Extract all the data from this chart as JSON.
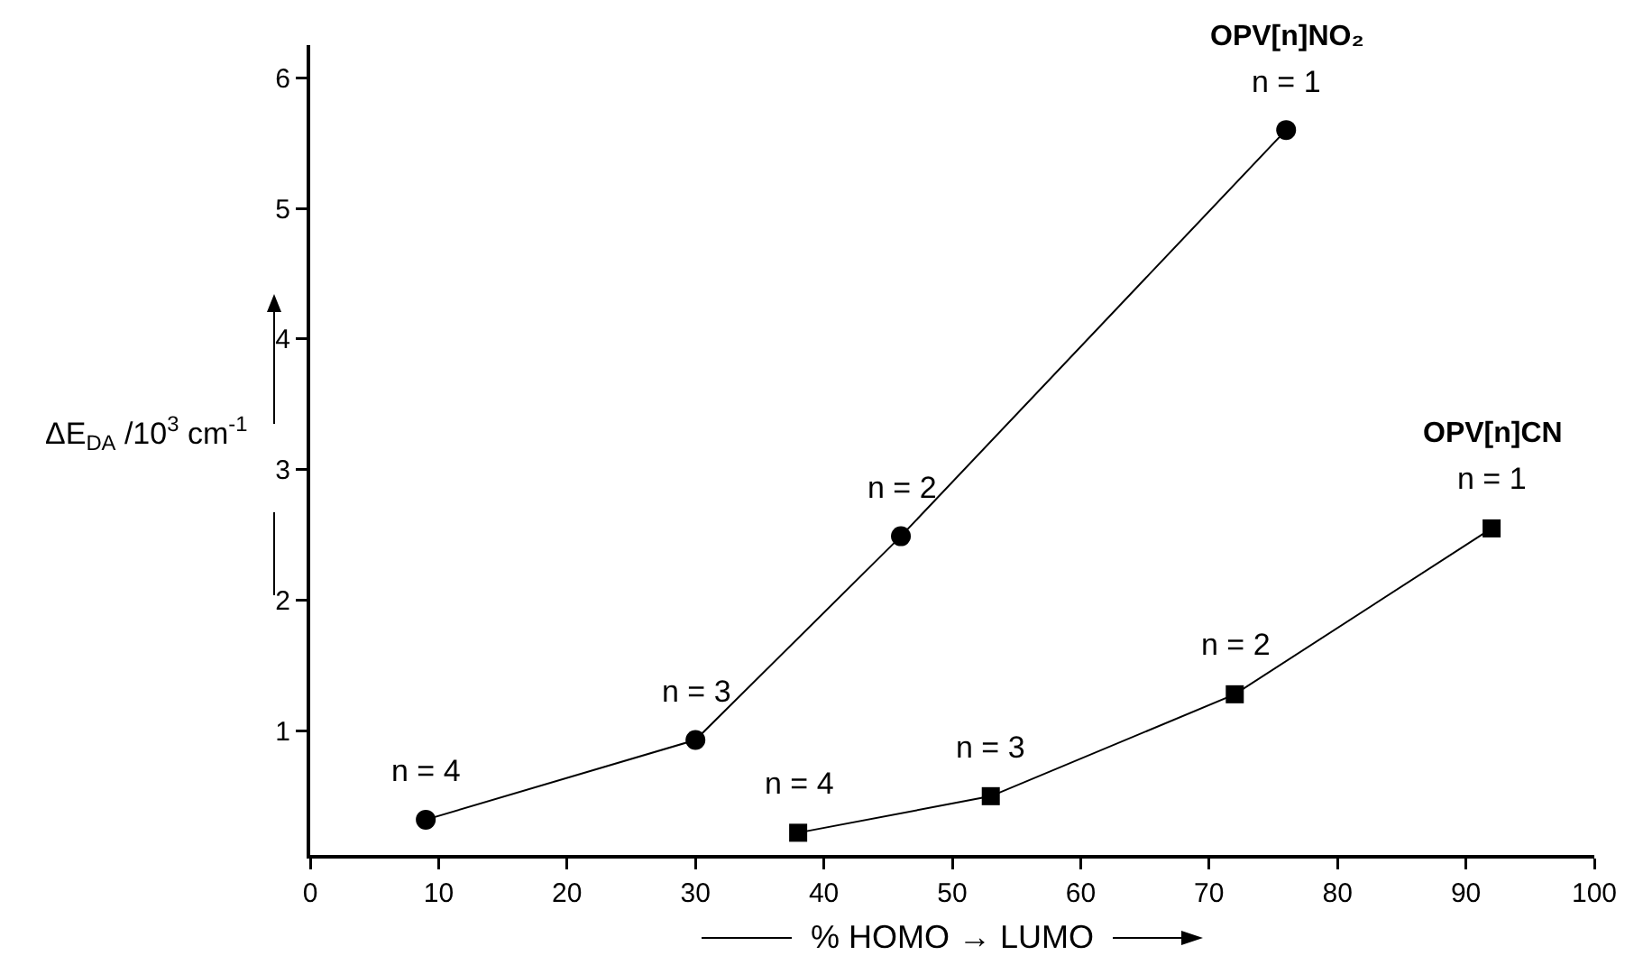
{
  "chart_data": {
    "type": "line",
    "xlabel": "% HOMO → LUMO",
    "ylabel": "ΔE$_{DA}$ /10$^{3}$ cm$^{-1}$",
    "xlim": [
      0,
      100
    ],
    "xticks": [
      0,
      10,
      20,
      30,
      40,
      50,
      60,
      70,
      80,
      90,
      100
    ],
    "ylim": [
      0.05,
      6.25
    ],
    "yticks": [
      1,
      2,
      3,
      4,
      5,
      6
    ],
    "grid": false,
    "legend": false,
    "line_style": "solid",
    "series": [
      {
        "name": "OPV[n]NO₂",
        "color": "#000000",
        "marker": "circle",
        "x": [
          9,
          30,
          46,
          76
        ],
        "values": [
          0.32,
          0.93,
          2.49,
          5.6
        ]
      },
      {
        "name": "OPV[n]CN",
        "color": "#000000",
        "marker": "square",
        "x": [
          38,
          53,
          72,
          92
        ],
        "values": [
          0.22,
          0.5,
          1.28,
          2.55
        ]
      }
    ],
    "annotations": [
      {
        "text": "n = 4",
        "x": 9,
        "y": 0.32
      },
      {
        "text": "n = 3",
        "x": 30,
        "y": 0.93
      },
      {
        "text": "n = 2",
        "x": 46,
        "y": 2.49
      },
      {
        "text": "n = 1",
        "x": 76,
        "y": 5.6
      },
      {
        "text": "n = 4",
        "x": 38,
        "y": 0.22
      },
      {
        "text": "n = 3",
        "x": 53,
        "y": 0.5
      },
      {
        "text": "n = 2",
        "x": 72,
        "y": 1.28
      },
      {
        "text": "n = 1",
        "x": 92,
        "y": 2.55
      }
    ]
  }
}
